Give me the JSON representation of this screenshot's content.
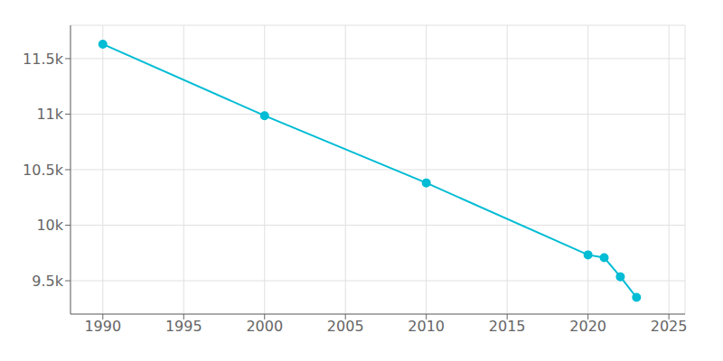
{
  "chart_data": {
    "type": "line",
    "x": [
      1990,
      2000,
      2010,
      2020,
      2021,
      2022,
      2023
    ],
    "values": [
      11630,
      10986,
      10381,
      9733,
      9708,
      9536,
      9350
    ],
    "color": "#00BCD4",
    "marker": "circle",
    "xlim": [
      1988,
      2026
    ],
    "ylim": [
      9200,
      11800
    ],
    "xticks": [
      1990,
      1995,
      2000,
      2005,
      2010,
      2015,
      2020,
      2025
    ],
    "yticks": [
      {
        "value": 9500,
        "label": "9.5k"
      },
      {
        "value": 10000,
        "label": "10k"
      },
      {
        "value": 10500,
        "label": "10.5k"
      },
      {
        "value": 11000,
        "label": "11k"
      },
      {
        "value": 11500,
        "label": "11.5k"
      }
    ],
    "grid": true
  }
}
